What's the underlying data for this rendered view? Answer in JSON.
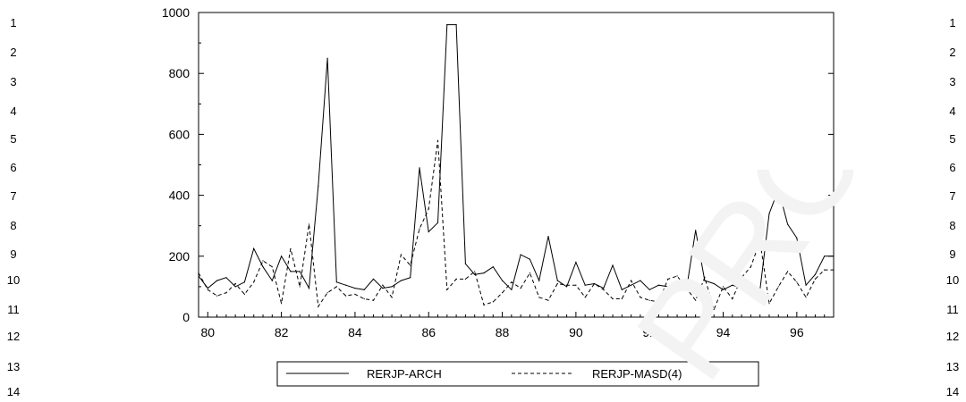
{
  "line_numbers": [
    "1",
    "2",
    "3",
    "4",
    "5",
    "6",
    "7",
    "8",
    "9",
    "10",
    "11",
    "12",
    "13",
    "14"
  ],
  "watermark_text": "PROOF",
  "chart_data": {
    "type": "line",
    "xlabel": "",
    "ylabel": "",
    "ylim": [
      0,
      1000
    ],
    "xlim": [
      79.75,
      97.0
    ],
    "xticks": [
      "80",
      "82",
      "84",
      "86",
      "88",
      "90",
      "92",
      "94",
      "96"
    ],
    "yticks": [
      "0",
      "200",
      "400",
      "600",
      "800",
      "1000"
    ],
    "grid": false,
    "legend_position": "bottom",
    "series": [
      {
        "name": "RERJP-ARCH",
        "style": "solid",
        "color": "#000000",
        "points": [
          [
            79.75,
            135
          ],
          [
            80.0,
            95
          ],
          [
            80.25,
            120
          ],
          [
            80.5,
            130
          ],
          [
            80.75,
            100
          ],
          [
            81.0,
            115
          ],
          [
            81.25,
            225
          ],
          [
            81.5,
            165
          ],
          [
            81.75,
            120
          ],
          [
            82.0,
            200
          ],
          [
            82.25,
            150
          ],
          [
            82.5,
            150
          ],
          [
            82.75,
            95
          ],
          [
            83.0,
            430
          ],
          [
            83.25,
            850
          ],
          [
            83.5,
            115
          ],
          [
            83.75,
            105
          ],
          [
            84.0,
            95
          ],
          [
            84.25,
            90
          ],
          [
            84.5,
            125
          ],
          [
            84.75,
            95
          ],
          [
            85.0,
            100
          ],
          [
            85.25,
            120
          ],
          [
            85.5,
            130
          ],
          [
            85.75,
            490
          ],
          [
            86.0,
            280
          ],
          [
            86.25,
            310
          ],
          [
            86.5,
            960
          ],
          [
            86.75,
            960
          ],
          [
            87.0,
            175
          ],
          [
            87.25,
            140
          ],
          [
            87.5,
            145
          ],
          [
            87.75,
            165
          ],
          [
            88.0,
            120
          ],
          [
            88.25,
            90
          ],
          [
            88.5,
            205
          ],
          [
            88.75,
            190
          ],
          [
            89.0,
            120
          ],
          [
            89.25,
            265
          ],
          [
            89.5,
            120
          ],
          [
            89.75,
            100
          ],
          [
            90.0,
            180
          ],
          [
            90.25,
            105
          ],
          [
            90.5,
            110
          ],
          [
            90.75,
            95
          ],
          [
            91.0,
            170
          ],
          [
            91.25,
            90
          ],
          [
            91.5,
            105
          ],
          [
            91.75,
            120
          ],
          [
            92.0,
            90
          ],
          [
            92.25,
            105
          ],
          [
            92.5,
            100
          ],
          [
            92.75,
            105
          ],
          [
            93.0,
            90
          ],
          [
            93.25,
            285
          ],
          [
            93.5,
            120
          ],
          [
            93.75,
            110
          ],
          [
            94.0,
            90
          ],
          [
            94.25,
            105
          ],
          [
            94.5,
            95
          ],
          [
            94.75,
            105
          ],
          [
            95.0,
            90
          ],
          [
            95.25,
            340
          ],
          [
            95.5,
            420
          ],
          [
            95.75,
            305
          ],
          [
            96.0,
            260
          ],
          [
            96.25,
            105
          ],
          [
            96.5,
            140
          ],
          [
            96.75,
            200
          ],
          [
            97.0,
            200
          ]
        ]
      },
      {
        "name": "RERJP-MASD(4)",
        "style": "dashed",
        "color": "#000000",
        "points": [
          [
            79.75,
            145
          ],
          [
            80.0,
            90
          ],
          [
            80.25,
            70
          ],
          [
            80.5,
            80
          ],
          [
            80.75,
            110
          ],
          [
            81.0,
            75
          ],
          [
            81.25,
            115
          ],
          [
            81.5,
            185
          ],
          [
            81.75,
            165
          ],
          [
            82.0,
            45
          ],
          [
            82.25,
            225
          ],
          [
            82.5,
            100
          ],
          [
            82.75,
            305
          ],
          [
            83.0,
            35
          ],
          [
            83.25,
            80
          ],
          [
            83.5,
            100
          ],
          [
            83.75,
            70
          ],
          [
            84.0,
            75
          ],
          [
            84.25,
            60
          ],
          [
            84.5,
            55
          ],
          [
            84.75,
            105
          ],
          [
            85.0,
            65
          ],
          [
            85.25,
            205
          ],
          [
            85.5,
            170
          ],
          [
            85.75,
            290
          ],
          [
            86.0,
            355
          ],
          [
            86.25,
            580
          ],
          [
            86.5,
            90
          ],
          [
            86.75,
            125
          ],
          [
            87.0,
            125
          ],
          [
            87.25,
            150
          ],
          [
            87.5,
            40
          ],
          [
            87.75,
            50
          ],
          [
            88.0,
            80
          ],
          [
            88.25,
            115
          ],
          [
            88.5,
            95
          ],
          [
            88.75,
            145
          ],
          [
            89.0,
            65
          ],
          [
            89.25,
            55
          ],
          [
            89.5,
            110
          ],
          [
            89.75,
            105
          ],
          [
            90.0,
            105
          ],
          [
            90.25,
            65
          ],
          [
            90.5,
            110
          ],
          [
            90.75,
            90
          ],
          [
            91.0,
            60
          ],
          [
            91.25,
            60
          ],
          [
            91.5,
            120
          ],
          [
            91.75,
            65
          ],
          [
            92.0,
            55
          ],
          [
            92.25,
            50
          ],
          [
            92.5,
            125
          ],
          [
            92.75,
            135
          ],
          [
            93.0,
            95
          ],
          [
            93.25,
            55
          ],
          [
            93.5,
            130
          ],
          [
            93.75,
            25
          ],
          [
            94.0,
            100
          ],
          [
            94.25,
            60
          ],
          [
            94.5,
            130
          ],
          [
            94.75,
            165
          ],
          [
            95.0,
            250
          ],
          [
            95.25,
            45
          ],
          [
            95.5,
            100
          ],
          [
            95.75,
            150
          ],
          [
            96.0,
            115
          ],
          [
            96.25,
            65
          ],
          [
            96.5,
            125
          ],
          [
            96.75,
            155
          ],
          [
            97.0,
            155
          ]
        ]
      }
    ]
  }
}
